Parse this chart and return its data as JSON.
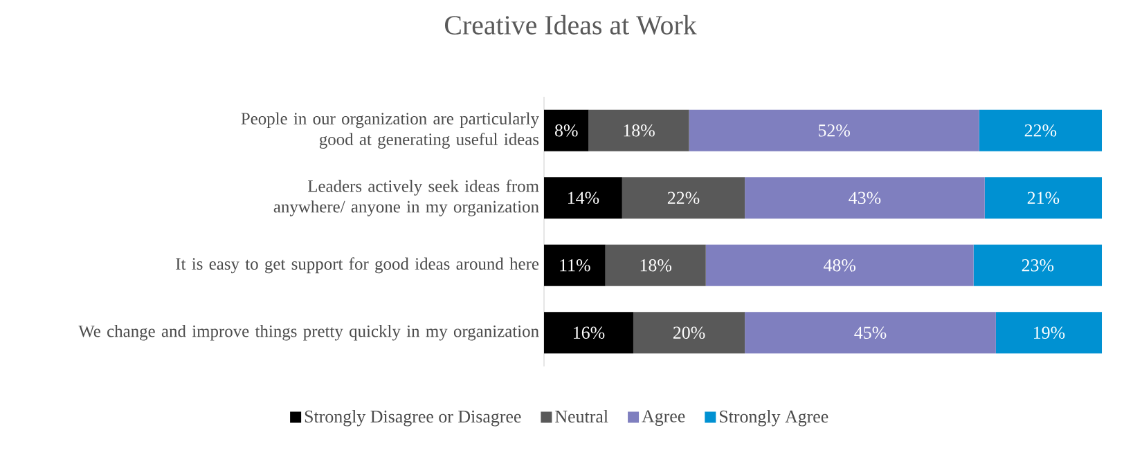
{
  "chart_data": {
    "type": "bar",
    "orientation": "horizontal",
    "stacked": true,
    "title": "Creative Ideas at Work",
    "categories": [
      "People in our organization are particularly good at generating useful ideas",
      "Leaders actively seek ideas from anywhere/ anyone in my organization",
      "It is easy to get support for good ideas around here",
      "We change and improve things pretty quickly in my organization"
    ],
    "series": [
      {
        "name": "Strongly Disagree or Disagree",
        "color": "#000000",
        "values": [
          8,
          14,
          11,
          16
        ],
        "value_labels": [
          "8%",
          "14%",
          "11%",
          "16%"
        ]
      },
      {
        "name": "Neutral",
        "color": "#595959",
        "values": [
          18,
          22,
          18,
          20
        ],
        "value_labels": [
          "18%",
          "22%",
          "18%",
          "20%"
        ]
      },
      {
        "name": "Agree",
        "color": "#7f7fbf",
        "values": [
          52,
          43,
          48,
          45
        ],
        "value_labels": [
          "52%",
          "43%",
          "48%",
          "45%"
        ]
      },
      {
        "name": "Strongly Agree",
        "color": "#0091d2",
        "values": [
          22,
          21,
          23,
          19
        ],
        "value_labels": [
          "22%",
          "21%",
          "23%",
          "19%"
        ]
      }
    ],
    "legend": "bottom"
  }
}
